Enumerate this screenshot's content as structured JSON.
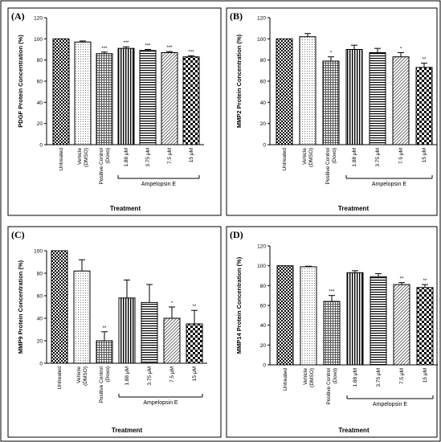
{
  "chart_data": [
    {
      "type": "bar",
      "panel_label": "(A)",
      "ylabel": "PDGF Protein Concentration (%)",
      "xlabel": "Treatment",
      "group_label": "Ampelopsin E",
      "categories": [
        "Untreated",
        "Vehicle (DMSO)",
        "Positive Control (Doxo)",
        "1.88 μM",
        "3.75 μM",
        "7.5 μM",
        "15 μM"
      ],
      "values": [
        100,
        97,
        86,
        91,
        89,
        87,
        83
      ],
      "errors": [
        0,
        1,
        1.5,
        1.5,
        1,
        1,
        1
      ],
      "significance": [
        "",
        "",
        "***",
        "***",
        "***",
        "***",
        "***"
      ],
      "yticks": [
        0,
        20,
        40,
        60,
        80,
        100,
        120
      ],
      "ylim": [
        0,
        120
      ]
    },
    {
      "type": "bar",
      "panel_label": "(B)",
      "ylabel": "MMP2 Protein Concentration (%)",
      "xlabel": "Treatment",
      "group_label": "Ampelopsin E",
      "categories": [
        "Untreated",
        "Vehicle (DMSO)",
        "Positive Control (Doxo)",
        "1.88 μM",
        "3.75 μM",
        "7.5 μM",
        "15 μM"
      ],
      "values": [
        100,
        102,
        79,
        90,
        87,
        83,
        73
      ],
      "errors": [
        0,
        3,
        4,
        4,
        4,
        4,
        4
      ],
      "significance": [
        "",
        "",
        "*",
        "",
        "",
        "*",
        "**"
      ],
      "yticks": [
        0,
        20,
        40,
        60,
        80,
        100,
        120
      ],
      "ylim": [
        0,
        120
      ]
    },
    {
      "type": "bar",
      "panel_label": "(C)",
      "ylabel": "MMP9 Protein Concentration (%)",
      "xlabel": "Treatment",
      "group_label": "Ampelopsin E",
      "categories": [
        "Untreated",
        "Vehicle (DMSO)",
        "Positive Control (Doxo)",
        "1.88 μM",
        "3.75 μM",
        "7.5 μM",
        "15 μM"
      ],
      "values": [
        100,
        82,
        20,
        58,
        54,
        40,
        35
      ],
      "errors": [
        0,
        10,
        8,
        16,
        16,
        10,
        12
      ],
      "significance": [
        "",
        "",
        "**",
        "",
        "",
        "*",
        "**"
      ],
      "yticks": [
        0,
        20,
        40,
        60,
        80,
        100
      ],
      "ylim": [
        0,
        100
      ]
    },
    {
      "type": "bar",
      "panel_label": "(D)",
      "ylabel": "MMP14 Protein Concentration (%)",
      "xlabel": "Treatment",
      "group_label": "Ampelopsin E",
      "categories": [
        "Untreated",
        "Vehicle (DMSO)",
        "Positive Control (Doxo)",
        "1.88 μM",
        "3.75 μM",
        "7.5 μM",
        "15 μM"
      ],
      "values": [
        100,
        99,
        64,
        93,
        89,
        81,
        78
      ],
      "errors": [
        0,
        0.5,
        6,
        2,
        3,
        2,
        3
      ],
      "significance": [
        "",
        "",
        "***",
        "",
        "",
        "**",
        "**"
      ],
      "yticks": [
        0,
        20,
        40,
        60,
        80,
        100,
        120
      ],
      "ylim": [
        0,
        120
      ]
    }
  ]
}
